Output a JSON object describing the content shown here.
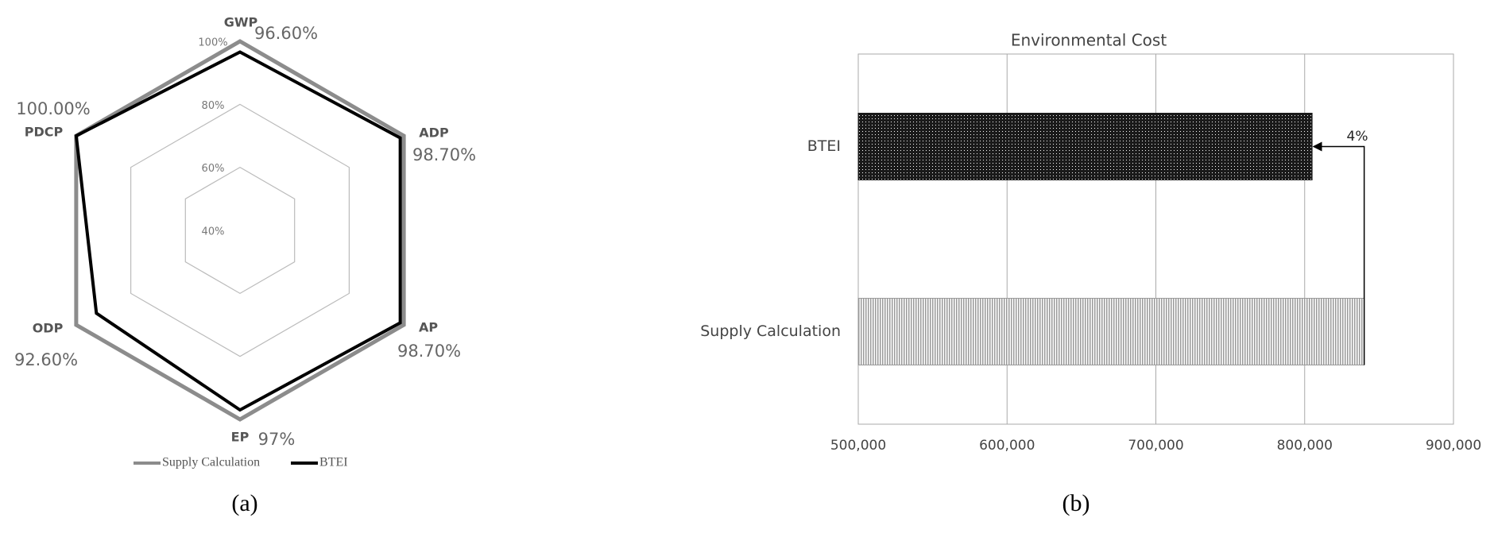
{
  "chart_data": [
    {
      "type": "radar",
      "caption": "(a)",
      "categories": [
        "GWP",
        "ADP",
        "AP",
        "EP",
        "ODP",
        "PDCP"
      ],
      "rlim": [
        40,
        100
      ],
      "rticks": [
        {
          "value": 40,
          "label": "40%"
        },
        {
          "value": 60,
          "label": "60%"
        },
        {
          "value": 80,
          "label": "80%"
        },
        {
          "value": 100,
          "label": "100%"
        }
      ],
      "series": [
        {
          "name": "Supply Calculation",
          "color": "#8c8c8c",
          "values": [
            100,
            100,
            100,
            100,
            100,
            100
          ]
        },
        {
          "name": "BTEI",
          "color": "#000000",
          "values": [
            96.6,
            98.7,
            98.7,
            97,
            92.6,
            100
          ],
          "value_labels": [
            "96.60%",
            "98.70%",
            "98.70%",
            "97%",
            "92.60%",
            "100.00%"
          ]
        }
      ]
    },
    {
      "type": "hbar",
      "title": "Environmental Cost",
      "caption": "(b)",
      "categories": [
        "BTEI",
        "Supply Calculation"
      ],
      "values": [
        805000,
        840000
      ],
      "colors": [
        "#1a1a1a",
        "#9a9a9a"
      ],
      "annotation": "4%",
      "xlim": [
        500000,
        900000
      ],
      "xticks": [
        {
          "value": 500000,
          "label": "500,000"
        },
        {
          "value": 600000,
          "label": "600,000"
        },
        {
          "value": 700000,
          "label": "700,000"
        },
        {
          "value": 800000,
          "label": "800,000"
        },
        {
          "value": 900000,
          "label": "900,000"
        }
      ],
      "grid": true
    }
  ]
}
